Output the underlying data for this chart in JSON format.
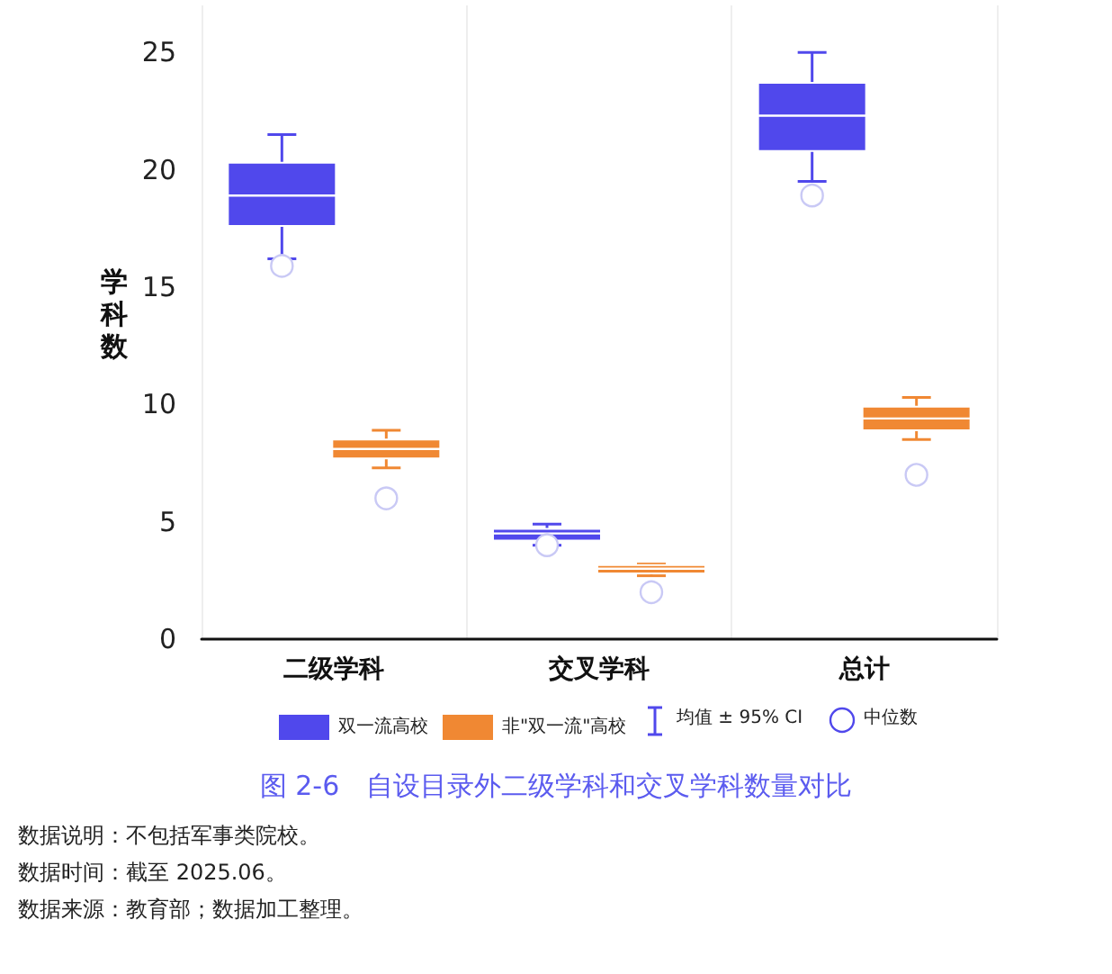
{
  "chart_data": {
    "type": "box",
    "title": "图 2-6　自设目录外二级学科和交叉学科数量对比",
    "ylabel": "学科数",
    "categories": [
      "二级学科",
      "交叉学科",
      "总计"
    ],
    "series": [
      {
        "name": "双一流高校",
        "color": "#5048ec",
        "boxes": [
          {
            "low": 16.2,
            "q1": 17.6,
            "median": 15.9,
            "mean": 18.9,
            "q3": 20.3,
            "high": 21.5
          },
          {
            "low": 4.0,
            "q1": 4.2,
            "median": 4.0,
            "mean": 4.5,
            "q3": 4.7,
            "high": 4.9
          },
          {
            "low": 19.5,
            "q1": 20.8,
            "median": 18.9,
            "mean": 22.3,
            "q3": 23.7,
            "high": 25.0
          }
        ]
      },
      {
        "name": "非\"双一流\"高校",
        "color": "#f08833",
        "boxes": [
          {
            "low": 7.3,
            "q1": 7.7,
            "median": 6.0,
            "mean": 8.1,
            "q3": 8.5,
            "high": 8.9
          },
          {
            "low": 2.7,
            "q1": 2.8,
            "median": 2.0,
            "mean": 3.0,
            "q3": 3.15,
            "high": 3.2
          },
          {
            "low": 8.5,
            "q1": 8.9,
            "median": 7.0,
            "mean": 9.4,
            "q3": 9.9,
            "high": 10.3
          }
        ]
      }
    ],
    "ylim": [
      0,
      27
    ],
    "yticks": [
      0,
      5,
      10,
      15,
      20,
      25
    ],
    "grid": "x",
    "legend": "bottom",
    "annotations": [
      "均值 ± 95% CI",
      "中位数",
      "数据说明：不包括军事类院校。",
      "数据时间：截至 2025.06。",
      "数据来源：教育部；数据加工整理。"
    ]
  }
}
